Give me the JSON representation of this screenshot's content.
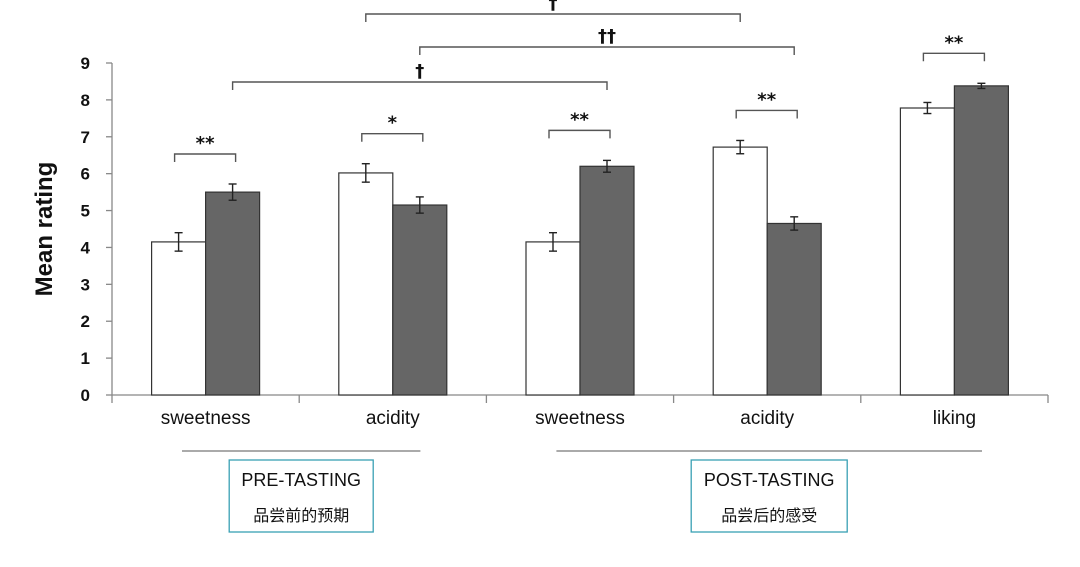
{
  "chart_data": {
    "type": "bar",
    "ylabel": "Mean rating",
    "ylim": [
      0,
      9
    ],
    "yticks": [
      0,
      1,
      2,
      3,
      4,
      5,
      6,
      7,
      8,
      9
    ],
    "categories": [
      "sweetness",
      "acidity",
      "sweetness",
      "acidity",
      "liking"
    ],
    "series": [
      {
        "color": "#ffffff",
        "values": [
          4.15,
          6.02,
          4.15,
          6.72,
          7.78
        ],
        "errors": [
          0.25,
          0.25,
          0.25,
          0.18,
          0.15
        ]
      },
      {
        "color": "#666666",
        "values": [
          5.5,
          5.15,
          6.2,
          4.65,
          8.38
        ],
        "errors": [
          0.22,
          0.22,
          0.16,
          0.18,
          0.07
        ]
      }
    ],
    "annotations": [
      {
        "type": "within",
        "category": 0,
        "text": "**"
      },
      {
        "type": "within",
        "category": 1,
        "text": "*"
      },
      {
        "type": "within",
        "category": 2,
        "text": "**"
      },
      {
        "type": "within",
        "category": 3,
        "text": "**"
      },
      {
        "type": "within",
        "category": 4,
        "text": "**"
      },
      {
        "type": "between",
        "from": {
          "category": 0,
          "series": 1
        },
        "to": {
          "category": 2,
          "series": 1
        },
        "text": "†"
      },
      {
        "type": "between",
        "from": {
          "category": 1,
          "series": 1
        },
        "to": {
          "category": 3,
          "series": 1
        },
        "text": "††"
      },
      {
        "type": "between",
        "from": {
          "category": 1,
          "series": 0
        },
        "to": {
          "category": 3,
          "series": 0
        },
        "text": "†"
      }
    ],
    "groups": [
      {
        "title": "PRE-TASTING",
        "subtitle": "品尝前的预期",
        "categories": [
          0,
          1
        ]
      },
      {
        "title": "POST-TASTING",
        "subtitle": "品尝后的感受",
        "categories": [
          2,
          3,
          4
        ]
      }
    ]
  }
}
